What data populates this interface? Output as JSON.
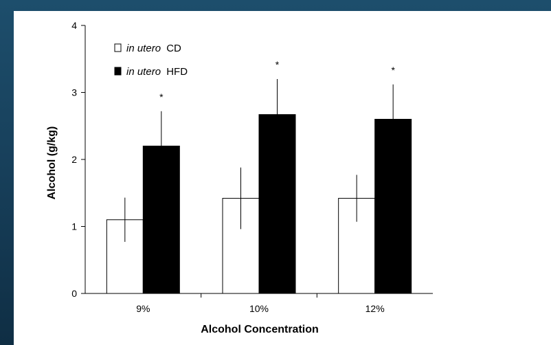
{
  "chart_data": {
    "type": "bar",
    "title": "",
    "xlabel": "Alcohol Concentration",
    "ylabel": "Alcohol (g/kg)",
    "ylim": [
      0,
      4
    ],
    "yticks": [
      "0",
      "1",
      "2",
      "3",
      "4"
    ],
    "categories": [
      "9%",
      "10%",
      "12%"
    ],
    "series": [
      {
        "name": "in utero CD",
        "legend_italic": "in utero",
        "legend_rest": "CD",
        "color": "#ffffff",
        "values": [
          1.1,
          1.42,
          1.42
        ],
        "errors": [
          0.33,
          0.46,
          0.35
        ]
      },
      {
        "name": "in utero HFD",
        "legend_italic": "in utero",
        "legend_rest": "HFD",
        "color": "#000000",
        "values": [
          2.2,
          2.67,
          2.6
        ],
        "errors": [
          0.52,
          0.53,
          0.52
        ]
      }
    ],
    "significance": [
      "*",
      "*",
      "*"
    ],
    "grid": false,
    "legend_position": "top-left"
  },
  "colors": {
    "background": "#173f5a",
    "panel": "#ffffff"
  }
}
